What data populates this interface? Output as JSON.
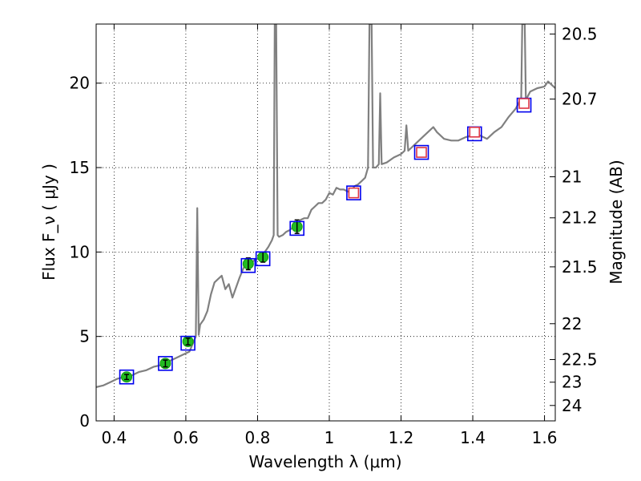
{
  "chart_data": {
    "type": "scatter",
    "xlabel": "Wavelength  λ (μm)",
    "ylabel": "Flux  F_ν  ( μJy )",
    "ylabel_right": "Magnitude (AB)",
    "xlim": [
      0.35,
      1.63
    ],
    "ylim": [
      0,
      23.5
    ],
    "grid": true,
    "x_ticks": [
      {
        "value": 0.4,
        "label": "0.4"
      },
      {
        "value": 0.6,
        "label": "0.6"
      },
      {
        "value": 0.8,
        "label": "0.8"
      },
      {
        "value": 1.0,
        "label": "1"
      },
      {
        "value": 1.2,
        "label": "1.2"
      },
      {
        "value": 1.4,
        "label": "1.4"
      },
      {
        "value": 1.6,
        "label": "1.6"
      }
    ],
    "y_ticks": [
      {
        "value": 0,
        "label": "0"
      },
      {
        "value": 5,
        "label": "5"
      },
      {
        "value": 10,
        "label": "10"
      },
      {
        "value": 15,
        "label": "15"
      },
      {
        "value": 20,
        "label": "20"
      }
    ],
    "mag_ticks": [
      {
        "value": 20.5,
        "label": "20.5"
      },
      {
        "value": 20.7,
        "label": "20.7"
      },
      {
        "value": 21,
        "label": "21"
      },
      {
        "value": 21.2,
        "label": "21.2"
      },
      {
        "value": 21.5,
        "label": "21.5"
      },
      {
        "value": 22,
        "label": "22"
      },
      {
        "value": 22.5,
        "label": "22.5"
      },
      {
        "value": 23,
        "label": "23"
      },
      {
        "value": 24,
        "label": "24"
      }
    ],
    "series": [
      {
        "kind": "model-spectrum",
        "color": "#808080",
        "points": [
          [
            0.35,
            2.0
          ],
          [
            0.37,
            2.1
          ],
          [
            0.39,
            2.3
          ],
          [
            0.41,
            2.5
          ],
          [
            0.43,
            2.6
          ],
          [
            0.45,
            2.7
          ],
          [
            0.47,
            2.9
          ],
          [
            0.49,
            3.0
          ],
          [
            0.51,
            3.2
          ],
          [
            0.53,
            3.3
          ],
          [
            0.55,
            3.5
          ],
          [
            0.57,
            3.7
          ],
          [
            0.59,
            3.9
          ],
          [
            0.61,
            4.1
          ],
          [
            0.62,
            4.6
          ],
          [
            0.628,
            5.0
          ],
          [
            0.632,
            12.6
          ],
          [
            0.636,
            5.1
          ],
          [
            0.64,
            5.7
          ],
          [
            0.65,
            6.0
          ],
          [
            0.66,
            6.5
          ],
          [
            0.67,
            7.5
          ],
          [
            0.68,
            8.2
          ],
          [
            0.69,
            8.4
          ],
          [
            0.7,
            8.6
          ],
          [
            0.71,
            7.8
          ],
          [
            0.72,
            8.1
          ],
          [
            0.73,
            7.3
          ],
          [
            0.74,
            7.9
          ],
          [
            0.75,
            8.5
          ],
          [
            0.76,
            9.0
          ],
          [
            0.77,
            9.4
          ],
          [
            0.78,
            9.3
          ],
          [
            0.79,
            9.5
          ],
          [
            0.8,
            9.6
          ],
          [
            0.81,
            9.8
          ],
          [
            0.82,
            10.0
          ],
          [
            0.83,
            10.3
          ],
          [
            0.84,
            10.7
          ],
          [
            0.845,
            11.0
          ],
          [
            0.848,
            23.5
          ],
          [
            0.852,
            23.5
          ],
          [
            0.856,
            11.0
          ],
          [
            0.86,
            10.9
          ],
          [
            0.87,
            11.0
          ],
          [
            0.88,
            11.2
          ],
          [
            0.89,
            11.3
          ],
          [
            0.9,
            11.5
          ],
          [
            0.91,
            11.6
          ],
          [
            0.92,
            11.9
          ],
          [
            0.93,
            12.0
          ],
          [
            0.94,
            12.0
          ],
          [
            0.95,
            12.5
          ],
          [
            0.96,
            12.7
          ],
          [
            0.97,
            12.9
          ],
          [
            0.98,
            12.9
          ],
          [
            0.99,
            13.1
          ],
          [
            1.0,
            13.5
          ],
          [
            1.01,
            13.4
          ],
          [
            1.02,
            13.8
          ],
          [
            1.03,
            13.7
          ],
          [
            1.04,
            13.7
          ],
          [
            1.05,
            13.6
          ],
          [
            1.06,
            13.5
          ],
          [
            1.07,
            13.9
          ],
          [
            1.08,
            14.0
          ],
          [
            1.09,
            14.2
          ],
          [
            1.1,
            14.4
          ],
          [
            1.108,
            15.0
          ],
          [
            1.112,
            23.5
          ],
          [
            1.118,
            23.5
          ],
          [
            1.122,
            15.0
          ],
          [
            1.13,
            15.0
          ],
          [
            1.138,
            15.2
          ],
          [
            1.142,
            19.4
          ],
          [
            1.146,
            15.2
          ],
          [
            1.16,
            15.3
          ],
          [
            1.18,
            15.6
          ],
          [
            1.2,
            15.8
          ],
          [
            1.21,
            16.0
          ],
          [
            1.215,
            17.5
          ],
          [
            1.22,
            16.0
          ],
          [
            1.24,
            16.4
          ],
          [
            1.26,
            16.8
          ],
          [
            1.28,
            17.2
          ],
          [
            1.29,
            17.4
          ],
          [
            1.3,
            17.1
          ],
          [
            1.32,
            16.7
          ],
          [
            1.34,
            16.6
          ],
          [
            1.36,
            16.6
          ],
          [
            1.38,
            16.8
          ],
          [
            1.4,
            16.9
          ],
          [
            1.42,
            16.9
          ],
          [
            1.44,
            16.7
          ],
          [
            1.46,
            17.1
          ],
          [
            1.48,
            17.4
          ],
          [
            1.5,
            18.0
          ],
          [
            1.52,
            18.5
          ],
          [
            1.535,
            19.1
          ],
          [
            1.538,
            23.5
          ],
          [
            1.545,
            23.5
          ],
          [
            1.548,
            19.0
          ],
          [
            1.56,
            19.5
          ],
          [
            1.58,
            19.7
          ],
          [
            1.6,
            19.8
          ],
          [
            1.61,
            20.1
          ],
          [
            1.62,
            19.9
          ],
          [
            1.63,
            19.7
          ]
        ]
      },
      {
        "kind": "observed",
        "marker": "circle",
        "color": "#22bb22",
        "points": [
          {
            "x": 0.435,
            "y": 2.6,
            "err": 0.15
          },
          {
            "x": 0.543,
            "y": 3.4,
            "err": 0.2
          },
          {
            "x": 0.606,
            "y": 4.7,
            "err": 0.2
          },
          {
            "x": 0.774,
            "y": 9.3,
            "err": 0.35
          },
          {
            "x": 0.815,
            "y": 9.7,
            "err": 0.3
          },
          {
            "x": 0.91,
            "y": 11.5,
            "err": 0.4
          }
        ]
      },
      {
        "kind": "model-photometry",
        "marker": "square",
        "color": "#0000ee",
        "points": [
          {
            "x": 0.435,
            "y": 2.6
          },
          {
            "x": 0.543,
            "y": 3.4
          },
          {
            "x": 0.606,
            "y": 4.6
          },
          {
            "x": 0.774,
            "y": 9.2
          },
          {
            "x": 0.815,
            "y": 9.6
          },
          {
            "x": 0.91,
            "y": 11.4
          },
          {
            "x": 1.068,
            "y": 13.5
          },
          {
            "x": 1.257,
            "y": 15.9
          },
          {
            "x": 1.405,
            "y": 17.0
          },
          {
            "x": 1.543,
            "y": 18.7
          }
        ]
      },
      {
        "kind": "upper-limit",
        "marker": "square",
        "color": "#dd3344",
        "points": [
          {
            "x": 1.068,
            "y": 13.5
          },
          {
            "x": 1.257,
            "y": 15.9
          },
          {
            "x": 1.405,
            "y": 17.1
          },
          {
            "x": 1.543,
            "y": 18.8
          }
        ]
      }
    ]
  }
}
